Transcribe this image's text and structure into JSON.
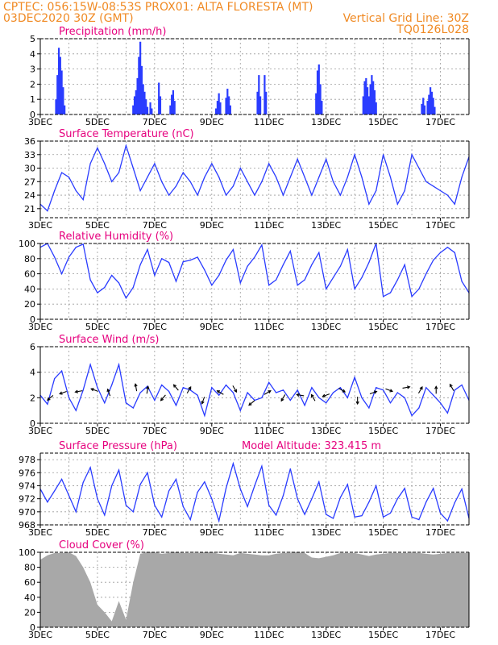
{
  "header": {
    "line1_left": "CPTEC:   056:15W-08:53S   PROX01: ALTA FLORESTA (MT)",
    "line2_left": "03DEC2020 30Z (GMT)",
    "line2_right": "Vertical Grid Line: 30Z",
    "line3_right": "TQ0126L028"
  },
  "colors": {
    "header": "#f08a24",
    "titles": "#e6007e",
    "series": "#2a3cff",
    "cloud": "#a8a8a8",
    "wind_arrow": "#000000"
  },
  "chart_data": [
    {
      "type": "bar",
      "title": "Precipitation (mm/h)",
      "ylim": [
        0,
        5
      ],
      "yticks": [
        "0",
        "1",
        "2",
        "3",
        "4",
        "5"
      ],
      "xticks": [
        "3DEC",
        "5DEC",
        "7DEC",
        "9DEC",
        "11DEC",
        "13DEC",
        "15DEC",
        "17DEC"
      ],
      "grid": true,
      "bars": [
        {
          "x": 3.55,
          "v": 1.0
        },
        {
          "x": 3.6,
          "v": 2.6
        },
        {
          "x": 3.65,
          "v": 4.4
        },
        {
          "x": 3.7,
          "v": 3.8
        },
        {
          "x": 3.75,
          "v": 2.9
        },
        {
          "x": 3.8,
          "v": 1.8
        },
        {
          "x": 3.85,
          "v": 0.6
        },
        {
          "x": 6.25,
          "v": 0.6
        },
        {
          "x": 6.3,
          "v": 1.2
        },
        {
          "x": 6.35,
          "v": 1.6
        },
        {
          "x": 6.4,
          "v": 2.4
        },
        {
          "x": 6.45,
          "v": 3.8
        },
        {
          "x": 6.5,
          "v": 4.8
        },
        {
          "x": 6.55,
          "v": 3.2
        },
        {
          "x": 6.6,
          "v": 2.0
        },
        {
          "x": 6.65,
          "v": 1.5
        },
        {
          "x": 6.7,
          "v": 1.0
        },
        {
          "x": 6.75,
          "v": 0.5
        },
        {
          "x": 6.85,
          "v": 0.8
        },
        {
          "x": 6.9,
          "v": 0.4
        },
        {
          "x": 7.15,
          "v": 2.1
        },
        {
          "x": 7.2,
          "v": 1.2
        },
        {
          "x": 7.55,
          "v": 0.6
        },
        {
          "x": 7.6,
          "v": 1.3
        },
        {
          "x": 7.65,
          "v": 1.6
        },
        {
          "x": 7.7,
          "v": 0.9
        },
        {
          "x": 9.15,
          "v": 0.4
        },
        {
          "x": 9.2,
          "v": 0.9
        },
        {
          "x": 9.25,
          "v": 1.4
        },
        {
          "x": 9.3,
          "v": 0.8
        },
        {
          "x": 9.5,
          "v": 1.1
        },
        {
          "x": 9.55,
          "v": 1.7
        },
        {
          "x": 9.6,
          "v": 1.2
        },
        {
          "x": 9.65,
          "v": 0.6
        },
        {
          "x": 10.6,
          "v": 1.5
        },
        {
          "x": 10.65,
          "v": 2.6
        },
        {
          "x": 10.7,
          "v": 1.2
        },
        {
          "x": 10.85,
          "v": 2.6
        },
        {
          "x": 10.9,
          "v": 1.5
        },
        {
          "x": 12.65,
          "v": 1.4
        },
        {
          "x": 12.7,
          "v": 2.9
        },
        {
          "x": 12.75,
          "v": 3.3
        },
        {
          "x": 12.8,
          "v": 2.0
        },
        {
          "x": 12.85,
          "v": 0.9
        },
        {
          "x": 14.3,
          "v": 1.2
        },
        {
          "x": 14.35,
          "v": 2.2
        },
        {
          "x": 14.4,
          "v": 2.4
        },
        {
          "x": 14.45,
          "v": 1.8
        },
        {
          "x": 14.5,
          "v": 1.2
        },
        {
          "x": 14.55,
          "v": 2.0
        },
        {
          "x": 14.6,
          "v": 2.6
        },
        {
          "x": 14.65,
          "v": 2.2
        },
        {
          "x": 14.7,
          "v": 1.6
        },
        {
          "x": 14.75,
          "v": 0.8
        },
        {
          "x": 16.35,
          "v": 0.7
        },
        {
          "x": 16.4,
          "v": 1.1
        },
        {
          "x": 16.45,
          "v": 0.6
        },
        {
          "x": 16.55,
          "v": 0.9
        },
        {
          "x": 16.6,
          "v": 1.3
        },
        {
          "x": 16.65,
          "v": 1.8
        },
        {
          "x": 16.7,
          "v": 1.5
        },
        {
          "x": 16.75,
          "v": 1.1
        },
        {
          "x": 16.8,
          "v": 0.5
        }
      ]
    },
    {
      "type": "line",
      "title": "Surface Temperature (nC)",
      "ylim": [
        19,
        36
      ],
      "yticks": [
        "21",
        "24",
        "27",
        "30",
        "33",
        "36"
      ],
      "xticks": [
        "3DEC",
        "5DEC",
        "7DEC",
        "9DEC",
        "11DEC",
        "13DEC",
        "15DEC",
        "17DEC"
      ],
      "grid": true,
      "x": [
        3.0,
        3.25,
        3.5,
        3.75,
        4.0,
        4.25,
        4.5,
        4.75,
        5.0,
        5.25,
        5.5,
        5.75,
        6.0,
        6.25,
        6.5,
        6.75,
        7.0,
        7.25,
        7.5,
        7.75,
        8.0,
        8.25,
        8.5,
        8.75,
        9.0,
        9.25,
        9.5,
        9.75,
        10.0,
        10.25,
        10.5,
        10.75,
        11.0,
        11.25,
        11.5,
        11.75,
        12.0,
        12.25,
        12.5,
        12.75,
        13.0,
        13.25,
        13.5,
        13.75,
        14.0,
        14.25,
        14.5,
        14.75,
        15.0,
        15.25,
        15.5,
        15.75,
        16.0,
        16.25,
        16.5,
        16.75,
        17.0,
        17.25,
        17.5,
        17.75,
        18.0
      ],
      "y": [
        22,
        20.5,
        25,
        29,
        28,
        25,
        23,
        31,
        34.5,
        31,
        27,
        29,
        35,
        30,
        25,
        28,
        31,
        27,
        24,
        26,
        29,
        27,
        24,
        28,
        31,
        28,
        24,
        26,
        30,
        27,
        24,
        27,
        31,
        28,
        24,
        28,
        32,
        28,
        24,
        28,
        32,
        27,
        24,
        28,
        33,
        28,
        22,
        25,
        33,
        28,
        22,
        25,
        33,
        30,
        27,
        26,
        25,
        24,
        22,
        28,
        32.5
      ]
    },
    {
      "type": "line",
      "title": "Relative Humidity (%)",
      "ylim": [
        0,
        100
      ],
      "yticks": [
        "0",
        "20",
        "40",
        "60",
        "80",
        "100"
      ],
      "xticks": [
        "3DEC",
        "5DEC",
        "7DEC",
        "9DEC",
        "11DEC",
        "13DEC",
        "15DEC",
        "17DEC"
      ],
      "grid": true,
      "x": [
        3.0,
        3.25,
        3.5,
        3.75,
        4.0,
        4.25,
        4.5,
        4.75,
        5.0,
        5.25,
        5.5,
        5.75,
        6.0,
        6.25,
        6.5,
        6.75,
        7.0,
        7.25,
        7.5,
        7.75,
        8.0,
        8.25,
        8.5,
        8.75,
        9.0,
        9.25,
        9.5,
        9.75,
        10.0,
        10.25,
        10.5,
        10.75,
        11.0,
        11.25,
        11.5,
        11.75,
        12.0,
        12.25,
        12.5,
        12.75,
        13.0,
        13.25,
        13.5,
        13.75,
        14.0,
        14.25,
        14.5,
        14.75,
        15.0,
        15.25,
        15.5,
        15.75,
        16.0,
        16.25,
        16.5,
        16.75,
        17.0,
        17.25,
        17.5,
        17.75,
        18.0
      ],
      "y": [
        95,
        100,
        82,
        60,
        82,
        95,
        99,
        52,
        35,
        42,
        58,
        48,
        28,
        42,
        72,
        92,
        58,
        80,
        75,
        50,
        76,
        78,
        82,
        65,
        45,
        58,
        78,
        92,
        48,
        70,
        82,
        98,
        45,
        52,
        72,
        90,
        45,
        52,
        72,
        88,
        40,
        55,
        70,
        92,
        40,
        55,
        75,
        100,
        30,
        35,
        52,
        72,
        30,
        40,
        60,
        78,
        88,
        95,
        88,
        50,
        35
      ]
    },
    {
      "type": "line",
      "title": "Surface Wind (m/s)",
      "ylim": [
        0,
        6
      ],
      "yticks": [
        "0",
        "2",
        "4",
        "6"
      ],
      "xticks": [
        "3DEC",
        "5DEC",
        "7DEC",
        "9DEC",
        "11DEC",
        "13DEC",
        "15DEC",
        "17DEC"
      ],
      "grid": true,
      "x": [
        3.0,
        3.25,
        3.5,
        3.75,
        4.0,
        4.25,
        4.5,
        4.75,
        5.0,
        5.25,
        5.5,
        5.75,
        6.0,
        6.25,
        6.5,
        6.75,
        7.0,
        7.25,
        7.5,
        7.75,
        8.0,
        8.25,
        8.5,
        8.75,
        9.0,
        9.25,
        9.5,
        9.75,
        10.0,
        10.25,
        10.5,
        10.75,
        11.0,
        11.25,
        11.5,
        11.75,
        12.0,
        12.25,
        12.5,
        12.75,
        13.0,
        13.25,
        13.5,
        13.75,
        14.0,
        14.25,
        14.5,
        14.75,
        15.0,
        15.25,
        15.5,
        15.75,
        16.0,
        16.25,
        16.5,
        16.75,
        17.0,
        17.25,
        17.5,
        17.75,
        18.0
      ],
      "y": [
        2.2,
        1.5,
        3.5,
        4.1,
        2.0,
        1.0,
        2.6,
        4.6,
        2.8,
        1.6,
        3.0,
        4.6,
        1.6,
        1.2,
        2.4,
        2.9,
        1.8,
        3.0,
        2.5,
        1.4,
        2.8,
        2.6,
        2.2,
        0.6,
        2.8,
        2.2,
        3.0,
        2.4,
        1.0,
        2.4,
        1.8,
        2.0,
        3.2,
        2.4,
        2.6,
        1.8,
        2.6,
        1.4,
        2.8,
        2.0,
        1.6,
        2.4,
        2.8,
        2.0,
        3.6,
        2.0,
        1.2,
        2.8,
        2.6,
        1.6,
        2.4,
        2.0,
        0.6,
        1.2,
        2.8,
        2.2,
        1.6,
        0.8,
        2.6,
        3.0,
        1.8
      ],
      "arrows": [
        {
          "x": 3.35,
          "v": 2.0,
          "a": 220
        },
        {
          "x": 3.8,
          "v": 2.4,
          "a": 200
        },
        {
          "x": 4.35,
          "v": 2.5,
          "a": 190
        },
        {
          "x": 4.9,
          "v": 2.6,
          "a": 160
        },
        {
          "x": 5.4,
          "v": 2.4,
          "a": 110
        },
        {
          "x": 6.35,
          "v": 2.8,
          "a": 100
        },
        {
          "x": 6.75,
          "v": 2.6,
          "a": 80
        },
        {
          "x": 7.3,
          "v": 2.0,
          "a": 230
        },
        {
          "x": 7.75,
          "v": 2.8,
          "a": 130
        },
        {
          "x": 8.2,
          "v": 2.6,
          "a": 60
        },
        {
          "x": 8.7,
          "v": 1.8,
          "a": 250
        },
        {
          "x": 9.3,
          "v": 2.4,
          "a": 150
        },
        {
          "x": 9.8,
          "v": 2.7,
          "a": 300
        },
        {
          "x": 10.4,
          "v": 1.6,
          "a": 220
        },
        {
          "x": 10.95,
          "v": 2.4,
          "a": 30
        },
        {
          "x": 11.5,
          "v": 2.0,
          "a": 240
        },
        {
          "x": 12.1,
          "v": 2.2,
          "a": 170
        },
        {
          "x": 12.55,
          "v": 2.0,
          "a": 120
        },
        {
          "x": 13.0,
          "v": 2.2,
          "a": 200
        },
        {
          "x": 13.55,
          "v": 2.6,
          "a": 330
        },
        {
          "x": 14.1,
          "v": 1.8,
          "a": 270
        },
        {
          "x": 14.65,
          "v": 2.4,
          "a": 20
        },
        {
          "x": 15.2,
          "v": 2.6,
          "a": 340
        },
        {
          "x": 15.8,
          "v": 2.8,
          "a": 10
        },
        {
          "x": 16.3,
          "v": 2.6,
          "a": 60
        },
        {
          "x": 16.85,
          "v": 2.6,
          "a": 90
        },
        {
          "x": 17.4,
          "v": 2.8,
          "a": 120
        }
      ]
    },
    {
      "type": "line",
      "title": "Surface Pressure (hPa)",
      "annotation": "Model Altitude: 323.415 m",
      "ylim": [
        968,
        979
      ],
      "yticks": [
        "968",
        "970",
        "972",
        "974",
        "976",
        "978"
      ],
      "xticks": [
        "3DEC",
        "5DEC",
        "7DEC",
        "9DEC",
        "11DEC",
        "13DEC",
        "15DEC",
        "17DEC"
      ],
      "grid": true,
      "x": [
        3.0,
        3.25,
        3.5,
        3.75,
        4.0,
        4.25,
        4.5,
        4.75,
        5.0,
        5.25,
        5.5,
        5.75,
        6.0,
        6.25,
        6.5,
        6.75,
        7.0,
        7.25,
        7.5,
        7.75,
        8.0,
        8.25,
        8.5,
        8.75,
        9.0,
        9.25,
        9.5,
        9.75,
        10.0,
        10.25,
        10.5,
        10.75,
        11.0,
        11.25,
        11.5,
        11.75,
        12.0,
        12.25,
        12.5,
        12.75,
        13.0,
        13.25,
        13.5,
        13.75,
        14.0,
        14.25,
        14.5,
        14.75,
        15.0,
        15.25,
        15.5,
        15.75,
        16.0,
        16.25,
        16.5,
        16.75,
        17.0,
        17.25,
        17.5,
        17.75,
        18.0
      ],
      "y": [
        973.5,
        971.5,
        973.2,
        975.0,
        972.5,
        970.0,
        974.5,
        976.8,
        972.0,
        969.5,
        974.0,
        976.4,
        971.0,
        970.0,
        974.2,
        976.0,
        971.0,
        969.2,
        973.2,
        975.0,
        970.8,
        968.8,
        973.0,
        974.6,
        972.0,
        968.6,
        973.6,
        977.4,
        973.5,
        970.8,
        974.0,
        977.0,
        971.0,
        969.5,
        972.5,
        976.6,
        972.0,
        969.6,
        972.0,
        974.6,
        969.6,
        969.0,
        972.2,
        974.2,
        969.2,
        969.4,
        971.5,
        974.0,
        969.2,
        969.8,
        972.0,
        973.6,
        969.2,
        968.8,
        971.5,
        973.6,
        969.8,
        968.6,
        971.4,
        973.5,
        969.0
      ]
    },
    {
      "type": "area",
      "title": "Cloud Cover (%)",
      "ylim": [
        0,
        100
      ],
      "yticks": [
        "0",
        "20",
        "40",
        "60",
        "80",
        "100"
      ],
      "xticks": [
        "3DEC",
        "5DEC",
        "7DEC",
        "9DEC",
        "11DEC",
        "13DEC",
        "15DEC",
        "17DEC"
      ],
      "grid": true,
      "x": [
        3.0,
        3.25,
        3.5,
        3.75,
        4.0,
        4.25,
        4.5,
        4.75,
        5.0,
        5.25,
        5.5,
        5.75,
        6.0,
        6.25,
        6.5,
        6.75,
        7.0,
        7.25,
        7.5,
        7.75,
        8.0,
        8.25,
        8.5,
        8.75,
        9.0,
        9.25,
        9.5,
        9.75,
        10.0,
        10.25,
        10.5,
        10.75,
        11.0,
        11.25,
        11.5,
        11.75,
        12.0,
        12.25,
        12.5,
        12.75,
        13.0,
        13.25,
        13.5,
        13.75,
        14.0,
        14.25,
        14.5,
        14.75,
        15.0,
        15.25,
        15.5,
        15.75,
        16.0,
        16.25,
        16.5,
        16.75,
        17.0,
        17.25,
        17.5,
        17.75,
        18.0
      ],
      "y": [
        90,
        96,
        99,
        99,
        100,
        95,
        80,
        60,
        30,
        20,
        8,
        35,
        10,
        60,
        98,
        100,
        100,
        98,
        99,
        100,
        99,
        99,
        99,
        100,
        100,
        98,
        97,
        96,
        99,
        98,
        97,
        96,
        96,
        98,
        99,
        99,
        100,
        99,
        93,
        92,
        94,
        96,
        99,
        99,
        99,
        97,
        95,
        97,
        98,
        99,
        99,
        99,
        99,
        99,
        98,
        97,
        98,
        99,
        99,
        99,
        99
      ]
    }
  ]
}
